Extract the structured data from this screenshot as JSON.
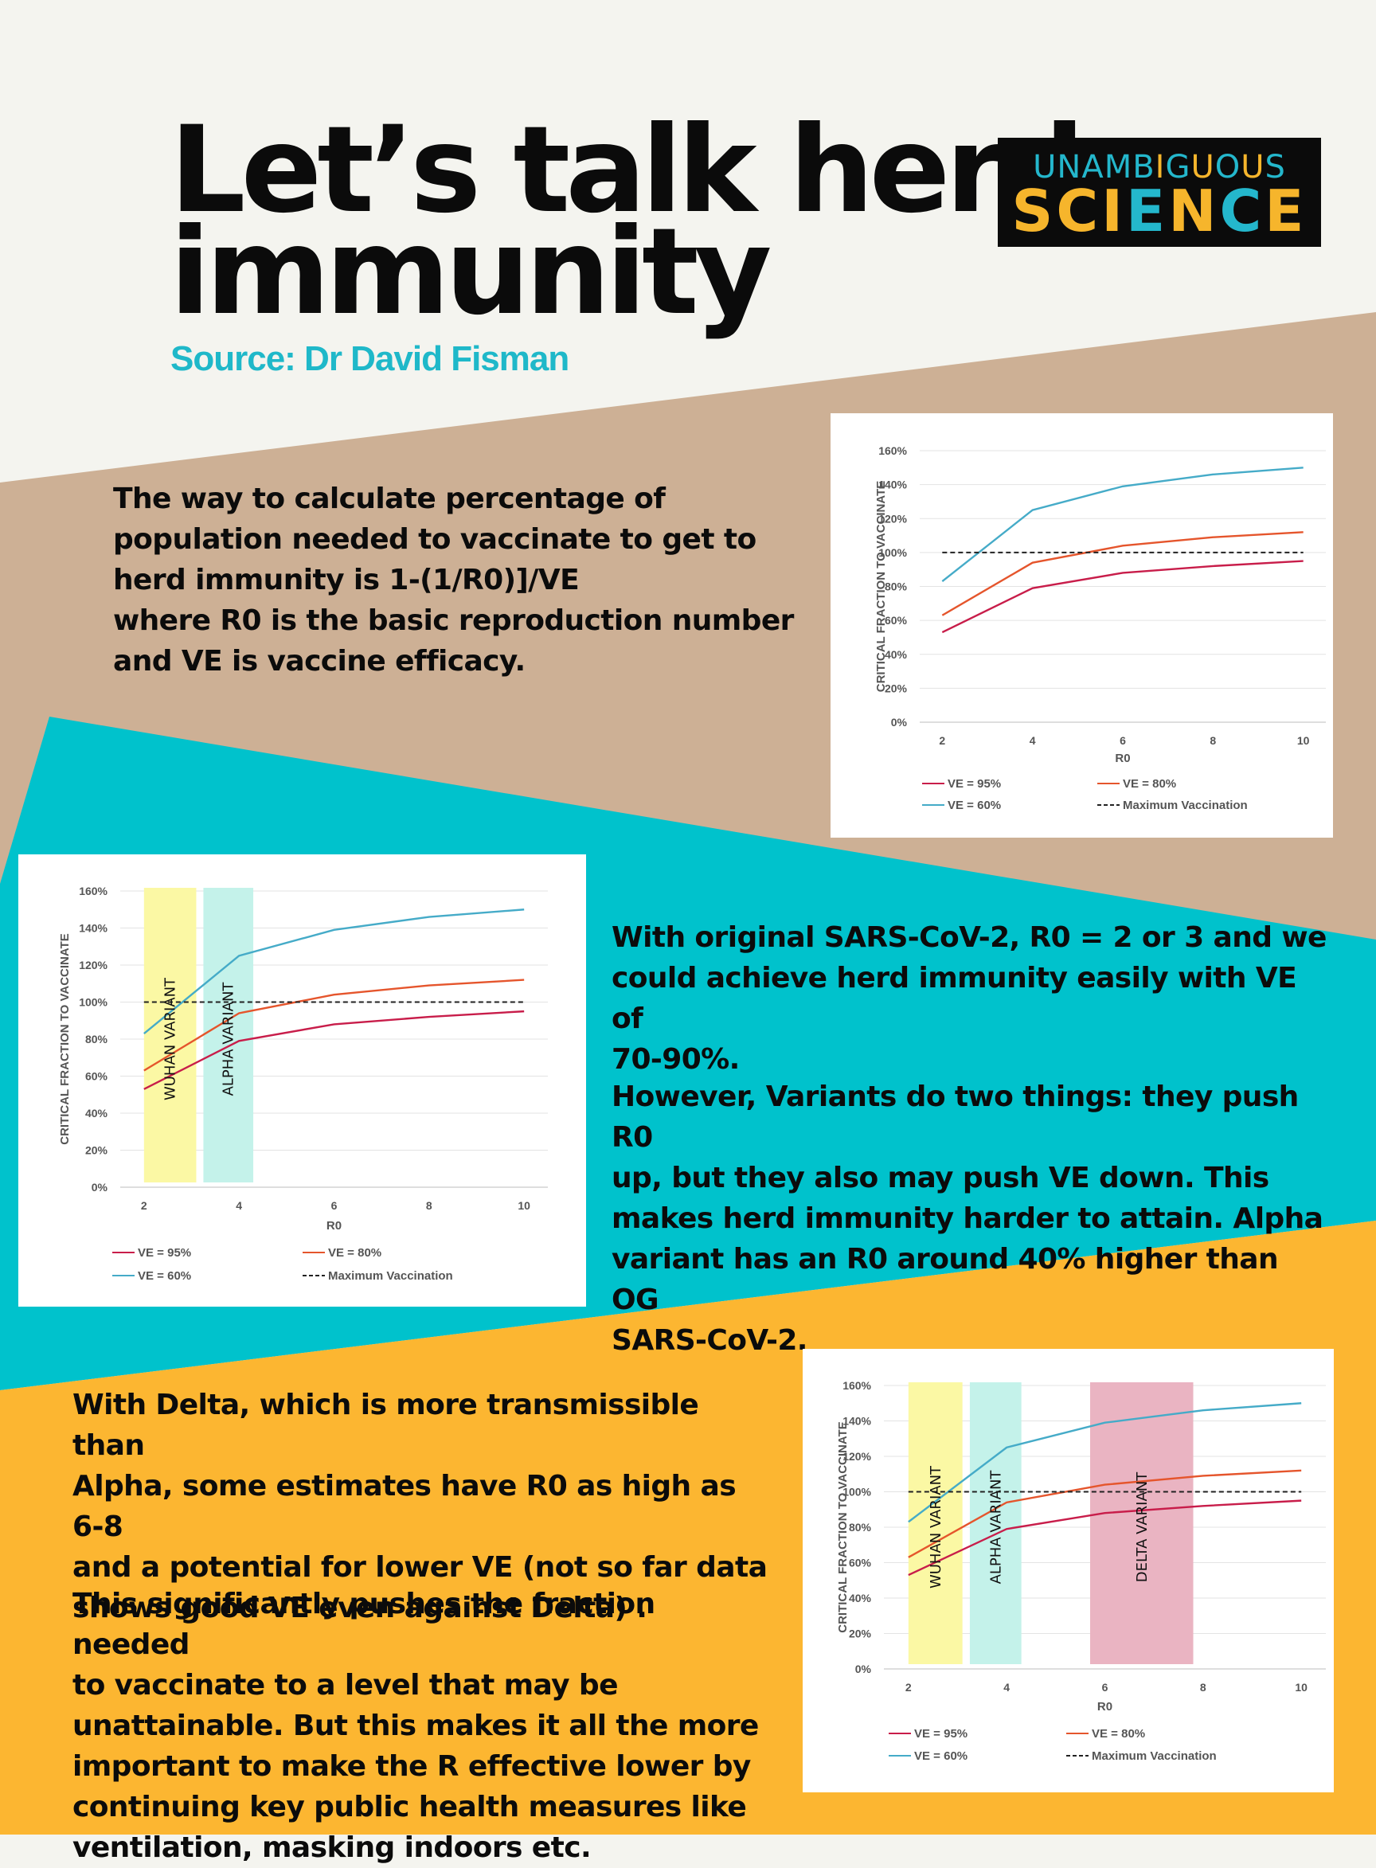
{
  "header": {
    "title_line1": "Let’s talk herd",
    "title_line2": "immunity",
    "source": "Source: Dr David Fisman"
  },
  "logo": {
    "line1": "UNAMBIGUOUS",
    "line2": "SCIENCE"
  },
  "colors": {
    "background_top": "#f4f4ef",
    "tan": "#cdb095",
    "teal": "#00c2cc",
    "orange": "#fcb631",
    "accent_teal_text": "#1fb8c9",
    "series_ve95": "#c81d4a",
    "series_ve80": "#e5552c",
    "series_ve60": "#45abc8",
    "band_wuhan": "#fbf8a4",
    "band_alpha": "#c4f2ea",
    "band_delta": "#eab4c2"
  },
  "paragraphs": {
    "p1": "The way to calculate percentage of\npopulation needed to  vaccinate to get to\nherd immunity is 1-(1/R0)]/VE\nwhere R0 is the basic reproduction number\nand VE is vaccine efficacy.",
    "p2": "With original SARS-CoV-2,  R0 = 2 or 3 and we\ncould achieve herd immunity easily with VE of\n70-90%.",
    "p3": "However, Variants do two things: they push R0\nup, but they also may push VE down.  This\nmakes herd immunity harder to attain.  Alpha\nvariant has an R0 around 40% higher than OG\nSARS-CoV-2.",
    "p4": "With Delta, which is more transmissible than\nAlpha, some estimates have R0 as high as 6-8\nand a potential for lower VE (not so far data\nshows good VE even against Delta) .",
    "p5": "This significantly pushes the fraction needed\nto vaccinate to a level that may be\nunattainable. But this makes it all the more\nimportant to make the R effective lower by\ncontinuing key public health measures like\nventilation, masking indoors etc."
  },
  "chart_data": [
    {
      "type": "line",
      "xlabel": "R0",
      "ylabel": "CRITICAL FRACTION TO VACCINATE",
      "xlim": [
        1.5,
        10.5
      ],
      "ylim": [
        0,
        160
      ],
      "x_ticks": [
        "2",
        "4",
        "6",
        "8",
        "10"
      ],
      "y_ticks": [
        "0%",
        "20%",
        "40%",
        "60%",
        "80%",
        "100%",
        "120%",
        "140%",
        "160%"
      ],
      "grid": true,
      "legend_position": "bottom",
      "x": [
        2,
        4,
        6,
        8,
        10
      ],
      "series": [
        {
          "name": "VE = 95%",
          "values": [
            53,
            79,
            88,
            92,
            95
          ],
          "color": "#c81d4a"
        },
        {
          "name": "VE = 80%",
          "values": [
            63,
            94,
            104,
            109,
            112
          ],
          "color": "#e5552c"
        },
        {
          "name": "VE = 60%",
          "values": [
            83,
            125,
            139,
            146,
            150
          ],
          "color": "#45abc8"
        },
        {
          "name": "Maximum Vaccination",
          "values": [
            100,
            100,
            100,
            100,
            100
          ],
          "color": "#222222",
          "dashed": true
        }
      ],
      "bands": []
    },
    {
      "type": "line",
      "xlabel": "R0",
      "ylabel": "CRITICAL FRACTION TO VACCINATE",
      "xlim": [
        1.5,
        10.5
      ],
      "ylim": [
        0,
        160
      ],
      "x_ticks": [
        "2",
        "4",
        "6",
        "8",
        "10"
      ],
      "y_ticks": [
        "0%",
        "20%",
        "40%",
        "60%",
        "80%",
        "100%",
        "120%",
        "140%",
        "160%"
      ],
      "grid": true,
      "legend_position": "bottom",
      "x": [
        2,
        4,
        6,
        8,
        10
      ],
      "series": [
        {
          "name": "VE = 95%",
          "values": [
            53,
            79,
            88,
            92,
            95
          ],
          "color": "#c81d4a"
        },
        {
          "name": "VE = 80%",
          "values": [
            63,
            94,
            104,
            109,
            112
          ],
          "color": "#e5552c"
        },
        {
          "name": "VE = 60%",
          "values": [
            83,
            125,
            139,
            146,
            150
          ],
          "color": "#45abc8"
        },
        {
          "name": "Maximum Vaccination",
          "values": [
            100,
            100,
            100,
            100,
            100
          ],
          "color": "#222222",
          "dashed": true
        }
      ],
      "bands": [
        {
          "label": "WUHAN VARIANT",
          "from": 2,
          "to": 3.1,
          "color": "#fbf8a4"
        },
        {
          "label": "ALPHA VARIANT",
          "from": 3.25,
          "to": 4.3,
          "color": "#c4f2ea"
        }
      ]
    },
    {
      "type": "line",
      "xlabel": "R0",
      "ylabel": "CRITICAL FRACTION TO VACCINATE",
      "xlim": [
        1.5,
        10.5
      ],
      "ylim": [
        0,
        160
      ],
      "x_ticks": [
        "2",
        "4",
        "6",
        "8",
        "10"
      ],
      "y_ticks": [
        "0%",
        "20%",
        "40%",
        "60%",
        "80%",
        "100%",
        "120%",
        "140%",
        "160%"
      ],
      "grid": true,
      "legend_position": "bottom",
      "x": [
        2,
        4,
        6,
        8,
        10
      ],
      "series": [
        {
          "name": "VE = 95%",
          "values": [
            53,
            79,
            88,
            92,
            95
          ],
          "color": "#c81d4a"
        },
        {
          "name": "VE = 80%",
          "values": [
            63,
            94,
            104,
            109,
            112
          ],
          "color": "#e5552c"
        },
        {
          "name": "VE = 60%",
          "values": [
            83,
            125,
            139,
            146,
            150
          ],
          "color": "#45abc8"
        },
        {
          "name": "Maximum Vaccination",
          "values": [
            100,
            100,
            100,
            100,
            100
          ],
          "color": "#222222",
          "dashed": true
        }
      ],
      "bands": [
        {
          "label": "WUHAN VARIANT",
          "from": 2,
          "to": 3.1,
          "color": "#fbf8a4"
        },
        {
          "label": "ALPHA VARIANT",
          "from": 3.25,
          "to": 4.3,
          "color": "#c4f2ea"
        },
        {
          "label": "DELTA VARIANT",
          "from": 5.7,
          "to": 7.8,
          "color": "#eab4c2"
        }
      ]
    }
  ]
}
